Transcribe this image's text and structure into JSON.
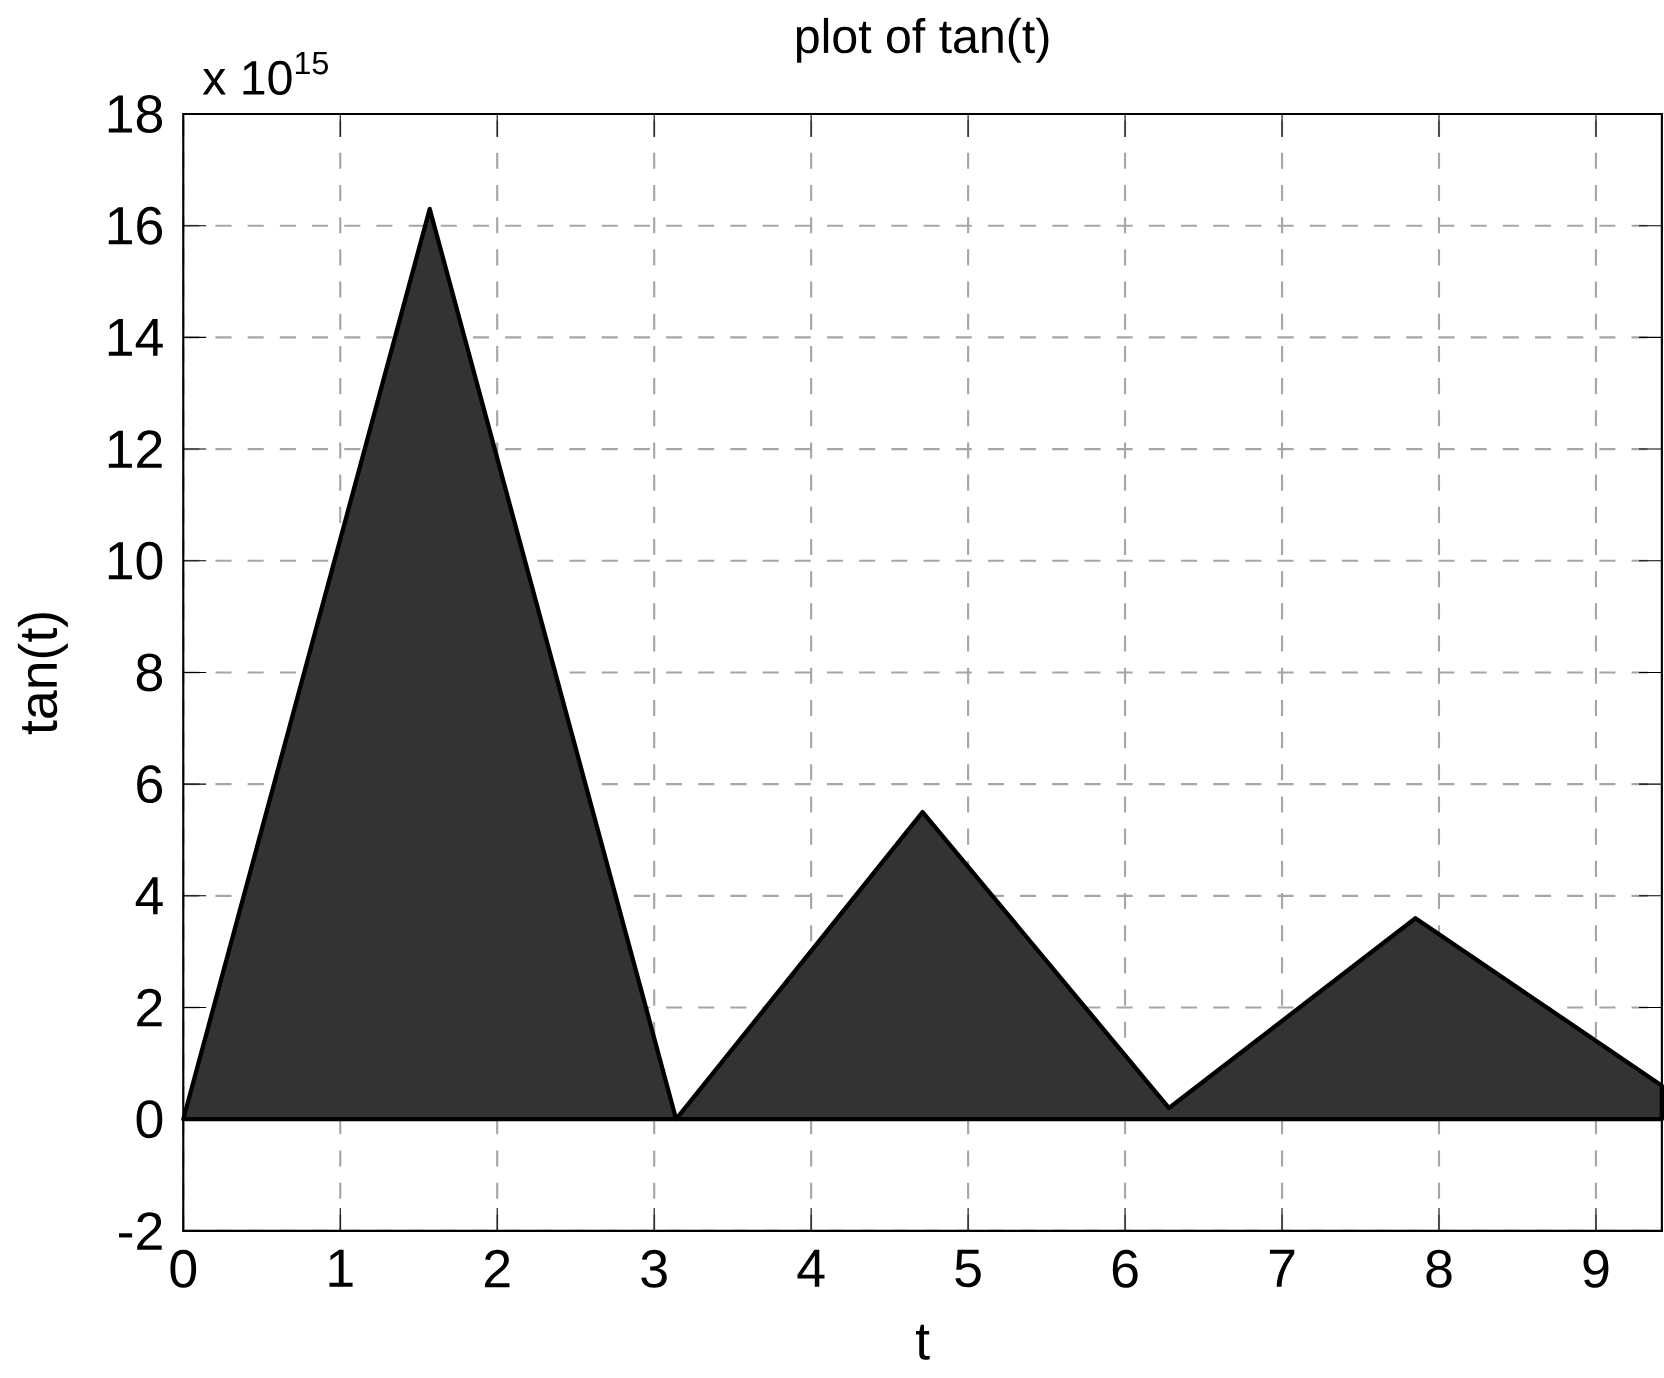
{
  "chart_data": {
    "type": "area",
    "title": "plot of tan(t)",
    "xlabel": "t",
    "ylabel": "tan(t)",
    "annotations": [
      "x 10$^{15}$"
    ],
    "x": [
      0,
      1.57,
      3.14,
      4.71,
      6.28,
      7.85,
      9.42
    ],
    "series": [
      {
        "color": "#333333",
        "values": [
          0,
          16.3,
          0,
          5.5,
          0.2,
          3.6,
          0.6
        ]
      }
    ],
    "xlim": [
      0,
      9.42
    ],
    "ylim": [
      -2,
      18
    ],
    "xticks": [
      0,
      1,
      2,
      3,
      4,
      5,
      6,
      7,
      8,
      9
    ],
    "yticks": [
      -2,
      0,
      2,
      4,
      6,
      8,
      10,
      12,
      14,
      16,
      18
    ],
    "grid": true
  }
}
